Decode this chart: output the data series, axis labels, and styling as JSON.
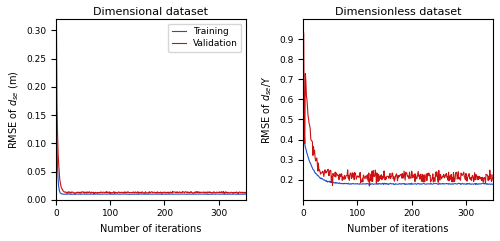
{
  "left_title": "Dimensional dataset",
  "right_title": "Dimensionless dataset",
  "left_ylabel": "RMSE of $d_{se}$ (m)",
  "right_ylabel": "RMSE of $d_{se}$/Y",
  "xlabel": "Number of iterations",
  "n_iters": 350,
  "legend_labels": [
    "Training",
    "Validation"
  ],
  "training_color": "#1f4fcc",
  "validation_color": "#cc1111",
  "left_ylim": [
    0.0,
    0.32
  ],
  "right_ylim": [
    0.1,
    1.0
  ],
  "left_yticks": [
    0.0,
    0.05,
    0.1,
    0.15,
    0.2,
    0.25,
    0.3
  ],
  "right_yticks": [
    0.2,
    0.3,
    0.4,
    0.5,
    0.6,
    0.7,
    0.8,
    0.9
  ],
  "xticks": [
    0,
    100,
    200,
    300
  ],
  "fig_bg": "#ffffff",
  "line_width": 0.8
}
